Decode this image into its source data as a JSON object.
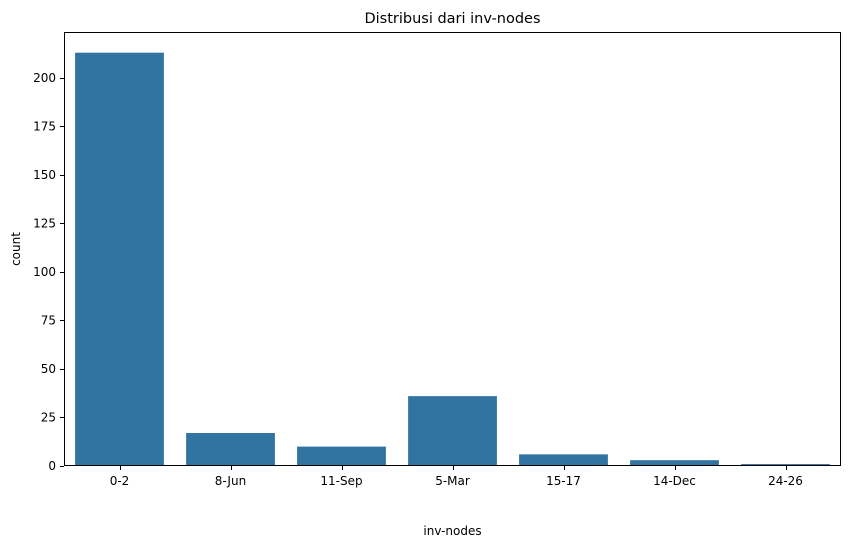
{
  "chart_data": {
    "type": "bar",
    "title": "Distribusi dari inv-nodes",
    "xlabel": "inv-nodes",
    "ylabel": "count",
    "categories": [
      "0-2",
      "8-Jun",
      "11-Sep",
      "5-Mar",
      "15-17",
      "14-Dec",
      "24-26"
    ],
    "values": [
      213,
      17,
      10,
      36,
      6,
      3,
      1
    ],
    "ylim": [
      0,
      223.65
    ],
    "yticks": [
      0,
      25,
      50,
      75,
      100,
      125,
      150,
      175,
      200
    ],
    "bar_color": "#3274a1",
    "grid": false,
    "legend": "none"
  }
}
